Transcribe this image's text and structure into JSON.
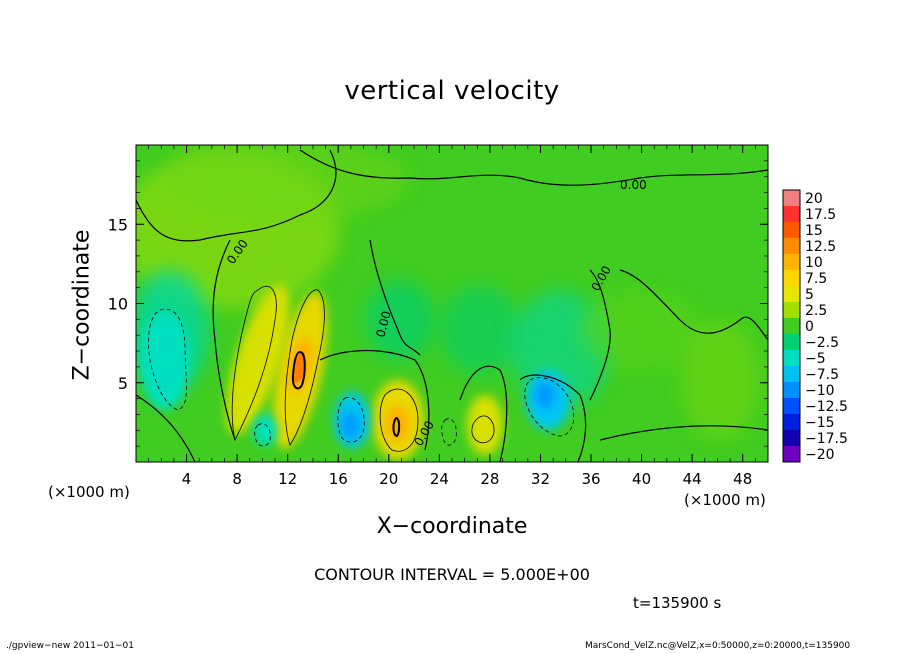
{
  "chart_data": {
    "type": "heatmap",
    "title": "vertical velocity",
    "xlabel": "X−coordinate",
    "ylabel": "Z−coordinate",
    "x_unit_left": "(×1000 m)",
    "x_unit_right": "(×1000 m)",
    "xlim": [
      0,
      50
    ],
    "ylim": [
      0,
      20
    ],
    "xticks": [
      4,
      8,
      12,
      16,
      20,
      24,
      28,
      32,
      36,
      40,
      44,
      48
    ],
    "yticks": [
      5,
      10,
      15
    ],
    "colorbar": {
      "levels": [
        20,
        17.5,
        15,
        12.5,
        10,
        7.5,
        5,
        2.5,
        0,
        -2.5,
        -5,
        -7.5,
        -10,
        -12.5,
        -15,
        -17.5,
        -20
      ],
      "labels": [
        "20",
        "17.5",
        "15",
        "12.5",
        "10",
        "7.5",
        "5",
        "2.5",
        "0",
        "−2.5",
        "−5",
        "−7.5",
        "−10",
        "−12.5",
        "−15",
        "−17.5",
        "−20"
      ],
      "colors": [
        "#f08080",
        "#ff3030",
        "#ff5a00",
        "#ff8c00",
        "#ffb400",
        "#ffd700",
        "#e6e600",
        "#a0e000",
        "#40cc20",
        "#00d070",
        "#00e0c0",
        "#00c0f0",
        "#0090ff",
        "#0050ff",
        "#0020e0",
        "#1000b0",
        "#7000c0"
      ]
    },
    "contour_labels": [
      "0.00",
      "0.00",
      "0.00",
      "0.00",
      "0.00"
    ],
    "contour_interval": "CONTOUR INTERVAL = 5.000E+00",
    "time": "t=135900 s",
    "features": [
      {
        "x": 9.5,
        "z": 6.0,
        "w": 3.0
      },
      {
        "x": 13.0,
        "z": 6.0,
        "w": 13.0
      },
      {
        "x": 20.5,
        "z": 2.5,
        "w": 11.0
      },
      {
        "x": 28.0,
        "z": 2.0,
        "w": 6.0
      },
      {
        "x": 17.0,
        "z": 3.0,
        "w": -7.0
      },
      {
        "x": 32.0,
        "z": 4.5,
        "w": -9.0
      },
      {
        "x": 3.0,
        "z": 6.0,
        "w": -3.0
      },
      {
        "x": 15.0,
        "z": 2.0,
        "w": -4.0
      }
    ]
  },
  "footer": {
    "left": "./gpview−new   2011−01−01",
    "right": "MarsCond_VelZ.nc@VelZ,x=0:50000,z=0:20000,t=135900"
  },
  "colors": {
    "background_field": "#40cc20",
    "outline": "#000000"
  }
}
